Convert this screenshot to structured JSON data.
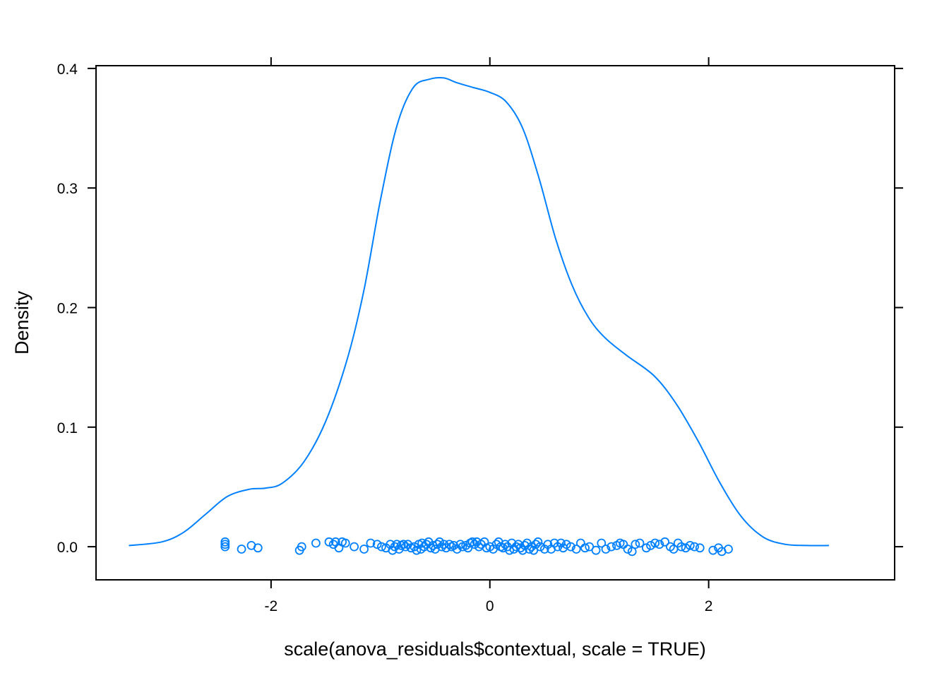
{
  "chart_data": {
    "type": "density",
    "xlabel": "scale(anova_residuals$contextual, scale = TRUE)",
    "ylabel": "Density",
    "xlim": [
      -3.6,
      3.7
    ],
    "ylim": [
      -0.0277,
      0.4023
    ],
    "x_ticks": [
      {
        "value": -2,
        "label": "-2"
      },
      {
        "value": 0,
        "label": "0"
      },
      {
        "value": 2,
        "label": "2"
      }
    ],
    "y_ticks": [
      {
        "value": 0.0,
        "label": "0.0"
      },
      {
        "value": 0.1,
        "label": "0.1"
      },
      {
        "value": 0.2,
        "label": "0.2"
      },
      {
        "value": 0.3,
        "label": "0.3"
      },
      {
        "value": 0.4,
        "label": "0.4"
      }
    ],
    "series": [
      {
        "color": "#0080ff",
        "density_x": [
          -3.3,
          -3.0,
          -2.8,
          -2.6,
          -2.4,
          -2.2,
          -2.05,
          -1.9,
          -1.7,
          -1.5,
          -1.3,
          -1.15,
          -1.0,
          -0.85,
          -0.7,
          -0.55,
          -0.42,
          -0.3,
          -0.15,
          0.0,
          0.15,
          0.3,
          0.45,
          0.6,
          0.75,
          0.9,
          1.05,
          1.25,
          1.5,
          1.7,
          1.9,
          2.1,
          2.3,
          2.5,
          2.7,
          2.9,
          3.1
        ],
        "density_y": [
          0.001,
          0.004,
          0.012,
          0.027,
          0.042,
          0.048,
          0.049,
          0.053,
          0.071,
          0.105,
          0.158,
          0.215,
          0.29,
          0.352,
          0.384,
          0.391,
          0.392,
          0.388,
          0.384,
          0.38,
          0.372,
          0.35,
          0.308,
          0.258,
          0.219,
          0.192,
          0.175,
          0.16,
          0.143,
          0.12,
          0.089,
          0.054,
          0.025,
          0.008,
          0.002,
          0.001,
          0.001
        ],
        "points": [
          {
            "x": -2.42,
            "y": 0.004
          },
          {
            "x": -2.42,
            "y": 0.002
          },
          {
            "x": -2.42,
            "y": 0.0
          },
          {
            "x": -2.27,
            "y": -0.002
          },
          {
            "x": -2.18,
            "y": 0.001
          },
          {
            "x": -2.12,
            "y": -0.001
          },
          {
            "x": -1.74,
            "y": -0.003
          },
          {
            "x": -1.72,
            "y": 0.0
          },
          {
            "x": -1.59,
            "y": 0.003
          },
          {
            "x": -1.47,
            "y": 0.004
          },
          {
            "x": -1.43,
            "y": 0.002
          },
          {
            "x": -1.41,
            "y": 0.004
          },
          {
            "x": -1.38,
            "y": -0.001
          },
          {
            "x": -1.35,
            "y": 0.004
          },
          {
            "x": -1.32,
            "y": 0.003
          },
          {
            "x": -1.24,
            "y": 0.0
          },
          {
            "x": -1.15,
            "y": -0.002
          },
          {
            "x": -1.09,
            "y": 0.003
          },
          {
            "x": -1.03,
            "y": 0.002
          },
          {
            "x": -0.99,
            "y": 0.0
          },
          {
            "x": -0.95,
            "y": -0.001
          },
          {
            "x": -0.91,
            "y": 0.002
          },
          {
            "x": -0.89,
            "y": -0.003
          },
          {
            "x": -0.87,
            "y": 0.0
          },
          {
            "x": -0.85,
            "y": 0.002
          },
          {
            "x": -0.83,
            "y": -0.002
          },
          {
            "x": -0.81,
            "y": 0.001
          },
          {
            "x": -0.79,
            "y": 0.002
          },
          {
            "x": -0.77,
            "y": 0.0
          },
          {
            "x": -0.75,
            "y": 0.002
          },
          {
            "x": -0.72,
            "y": -0.001
          },
          {
            "x": -0.69,
            "y": 0.0
          },
          {
            "x": -0.67,
            "y": -0.003
          },
          {
            "x": -0.65,
            "y": 0.002
          },
          {
            "x": -0.63,
            "y": -0.002
          },
          {
            "x": -0.62,
            "y": 0.003
          },
          {
            "x": -0.6,
            "y": 0.0
          },
          {
            "x": -0.58,
            "y": 0.002
          },
          {
            "x": -0.56,
            "y": 0.004
          },
          {
            "x": -0.54,
            "y": -0.001
          },
          {
            "x": -0.52,
            "y": 0.001
          },
          {
            "x": -0.5,
            "y": -0.002
          },
          {
            "x": -0.48,
            "y": 0.002
          },
          {
            "x": -0.46,
            "y": 0.004
          },
          {
            "x": -0.44,
            "y": 0.0
          },
          {
            "x": -0.42,
            "y": 0.002
          },
          {
            "x": -0.4,
            "y": -0.001
          },
          {
            "x": -0.37,
            "y": 0.002
          },
          {
            "x": -0.35,
            "y": 0.0
          },
          {
            "x": -0.33,
            "y": 0.001
          },
          {
            "x": -0.3,
            "y": -0.002
          },
          {
            "x": -0.27,
            "y": 0.002
          },
          {
            "x": -0.25,
            "y": 0.0
          },
          {
            "x": -0.22,
            "y": 0.001
          },
          {
            "x": -0.2,
            "y": -0.001
          },
          {
            "x": -0.18,
            "y": 0.003
          },
          {
            "x": -0.16,
            "y": 0.004
          },
          {
            "x": -0.14,
            "y": 0.002
          },
          {
            "x": -0.12,
            "y": 0.004
          },
          {
            "x": -0.1,
            "y": 0.0
          },
          {
            "x": -0.08,
            "y": 0.002
          },
          {
            "x": -0.05,
            "y": 0.004
          },
          {
            "x": -0.03,
            "y": -0.001
          },
          {
            "x": 0.0,
            "y": 0.0
          },
          {
            "x": 0.03,
            "y": -0.002
          },
          {
            "x": 0.06,
            "y": 0.002
          },
          {
            "x": 0.08,
            "y": 0.004
          },
          {
            "x": 0.1,
            "y": 0.0
          },
          {
            "x": 0.12,
            "y": -0.001
          },
          {
            "x": 0.14,
            "y": 0.002
          },
          {
            "x": 0.16,
            "y": 0.0
          },
          {
            "x": 0.18,
            "y": -0.003
          },
          {
            "x": 0.2,
            "y": 0.003
          },
          {
            "x": 0.22,
            "y": -0.002
          },
          {
            "x": 0.24,
            "y": 0.0
          },
          {
            "x": 0.26,
            "y": 0.002
          },
          {
            "x": 0.28,
            "y": -0.001
          },
          {
            "x": 0.3,
            "y": -0.003
          },
          {
            "x": 0.32,
            "y": 0.001
          },
          {
            "x": 0.34,
            "y": 0.003
          },
          {
            "x": 0.36,
            "y": -0.002
          },
          {
            "x": 0.38,
            "y": 0.0
          },
          {
            "x": 0.4,
            "y": -0.003
          },
          {
            "x": 0.42,
            "y": 0.002
          },
          {
            "x": 0.44,
            "y": 0.004
          },
          {
            "x": 0.46,
            "y": 0.0
          },
          {
            "x": 0.5,
            "y": -0.002
          },
          {
            "x": 0.53,
            "y": 0.002
          },
          {
            "x": 0.56,
            "y": -0.002
          },
          {
            "x": 0.59,
            "y": 0.003
          },
          {
            "x": 0.62,
            "y": 0.0
          },
          {
            "x": 0.65,
            "y": 0.003
          },
          {
            "x": 0.67,
            "y": -0.001
          },
          {
            "x": 0.7,
            "y": 0.002
          },
          {
            "x": 0.74,
            "y": 0.0
          },
          {
            "x": 0.79,
            "y": -0.002
          },
          {
            "x": 0.83,
            "y": 0.003
          },
          {
            "x": 0.87,
            "y": -0.001
          },
          {
            "x": 0.91,
            "y": 0.0
          },
          {
            "x": 0.97,
            "y": -0.003
          },
          {
            "x": 1.02,
            "y": 0.003
          },
          {
            "x": 1.06,
            "y": -0.002
          },
          {
            "x": 1.11,
            "y": 0.0
          },
          {
            "x": 1.16,
            "y": 0.001
          },
          {
            "x": 1.19,
            "y": 0.003
          },
          {
            "x": 1.22,
            "y": 0.002
          },
          {
            "x": 1.26,
            "y": -0.002
          },
          {
            "x": 1.3,
            "y": -0.004
          },
          {
            "x": 1.33,
            "y": 0.002
          },
          {
            "x": 1.37,
            "y": 0.003
          },
          {
            "x": 1.43,
            "y": -0.001
          },
          {
            "x": 1.47,
            "y": 0.001
          },
          {
            "x": 1.51,
            "y": 0.003
          },
          {
            "x": 1.55,
            "y": 0.002
          },
          {
            "x": 1.6,
            "y": 0.004
          },
          {
            "x": 1.65,
            "y": 0.0
          },
          {
            "x": 1.68,
            "y": -0.002
          },
          {
            "x": 1.72,
            "y": 0.003
          },
          {
            "x": 1.75,
            "y": 0.0
          },
          {
            "x": 1.79,
            "y": -0.001
          },
          {
            "x": 1.83,
            "y": 0.001
          },
          {
            "x": 1.87,
            "y": 0.0
          },
          {
            "x": 1.92,
            "y": -0.001
          },
          {
            "x": 2.04,
            "y": -0.003
          },
          {
            "x": 2.09,
            "y": -0.001
          },
          {
            "x": 2.12,
            "y": -0.004
          },
          {
            "x": 2.18,
            "y": -0.002
          }
        ]
      }
    ]
  }
}
